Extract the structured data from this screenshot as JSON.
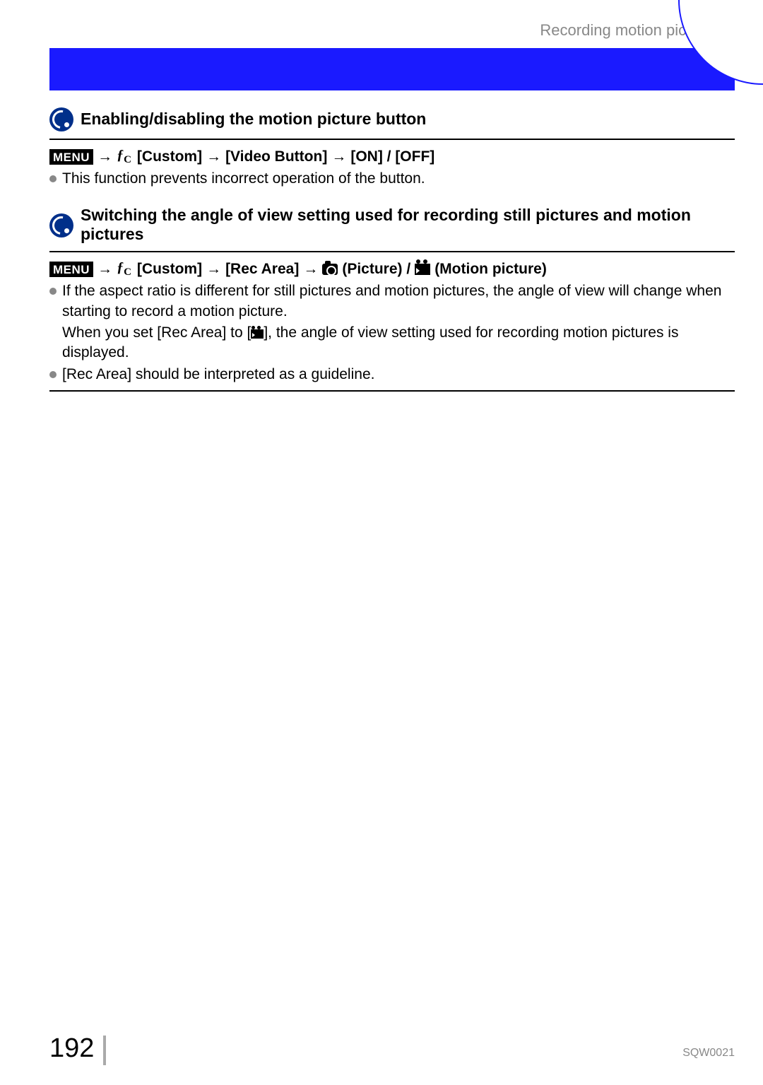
{
  "header": {
    "breadcrumb": "Recording motion pictures"
  },
  "section1": {
    "title": "Enabling/disabling the motion picture button",
    "menu_badge": "MENU",
    "path_custom": "[Custom]",
    "path_item": "[Video Button]",
    "path_options": "[ON] / [OFF]",
    "arrow": "→",
    "bullet1": "This function prevents incorrect operation of the button."
  },
  "section2": {
    "title": "Switching the angle of view setting used for recording still pictures and motion pictures",
    "menu_badge": "MENU",
    "path_custom": "[Custom]",
    "path_item": "[Rec Area]",
    "arrow": "→",
    "picture_label": "(Picture) /",
    "motion_label": "(Motion picture)",
    "bullet1": "If the aspect ratio is different for still pictures and motion pictures, the angle of view will change when starting to record a motion picture.",
    "sub_text_a": "When you set [Rec Area] to [",
    "sub_text_b": "], the angle of view setting used for recording motion pictures is displayed.",
    "bullet2": "[Rec Area] should be interpreted as a guideline."
  },
  "footer": {
    "page_number": "192",
    "doc_code": "SQW0021"
  }
}
